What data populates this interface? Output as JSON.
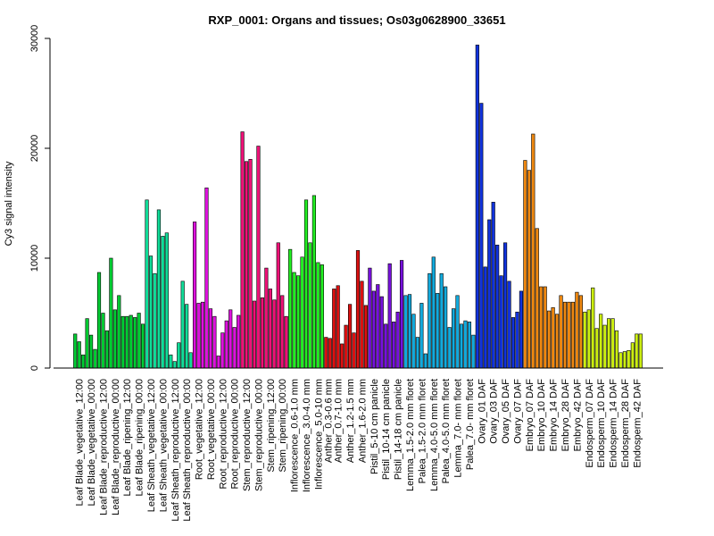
{
  "chart_data": {
    "type": "bar",
    "title": "RXP_0001: Organs and tissues; Os03g0628900_33651",
    "xlabel": "",
    "ylabel": "Cy3 signal intensity",
    "ylim": [
      0,
      30000
    ],
    "yticks": [
      0,
      10000,
      20000,
      30000
    ],
    "grid": false,
    "legend": "none",
    "groups": [
      {
        "label": "Leaf Blade_vegetative_12:00",
        "color": "#00cc33",
        "values": [
          3100,
          2400,
          1200
        ]
      },
      {
        "label": "Leaf Blade_vegetative_00:00",
        "color": "#00cc33",
        "values": [
          4500,
          3000,
          1700
        ]
      },
      {
        "label": "Leaf Blade_reproductive_12:00",
        "color": "#00cc33",
        "values": [
          8700,
          5000,
          3400
        ]
      },
      {
        "label": "Leaf Blade_reproductive_00:00",
        "color": "#00cc33",
        "values": [
          10000,
          5300,
          6600
        ]
      },
      {
        "label": "Leaf Blade_ripening_12:00",
        "color": "#00cc33",
        "values": [
          4700,
          4700,
          4800
        ]
      },
      {
        "label": "Leaf Blade_ripening_00:00",
        "color": "#00cc33",
        "values": [
          4600,
          5000,
          4000
        ]
      },
      {
        "label": "Leaf Sheath_vegetative_12:00",
        "color": "#11dd99",
        "values": [
          15300,
          10200,
          8600
        ]
      },
      {
        "label": "Leaf Sheath_vegetative_00:00",
        "color": "#11dd99",
        "values": [
          14400,
          12000,
          12300
        ]
      },
      {
        "label": "Leaf Sheath_reproductive_12:00",
        "color": "#11dd99",
        "values": [
          1200,
          600,
          2300
        ]
      },
      {
        "label": "Leaf Sheath_reproductive_00:00",
        "color": "#11dd99",
        "values": [
          7900,
          5800,
          1400
        ]
      },
      {
        "label": "Root_vegetative_12:00",
        "color": "#dd11dd",
        "values": [
          13300,
          5900,
          6000
        ]
      },
      {
        "label": "Root_vegetative_00:00",
        "color": "#dd11dd",
        "values": [
          16400,
          5400,
          4700
        ]
      },
      {
        "label": "Root_reproductive_12:00",
        "color": "#dd11dd",
        "values": [
          1100,
          3200,
          4300
        ]
      },
      {
        "label": "Root_reproductive_00:00",
        "color": "#dd11dd",
        "values": [
          5300,
          3700,
          4800
        ]
      },
      {
        "label": "Stem_reproductive_12:00",
        "color": "#ee1177",
        "values": [
          21500,
          18800,
          19000
        ]
      },
      {
        "label": "Stem_reproductive_00:00",
        "color": "#ee1177",
        "values": [
          6100,
          20200,
          6400
        ]
      },
      {
        "label": "Stem_ripening_12:00",
        "color": "#ee1177",
        "values": [
          9100,
          7200,
          6200
        ]
      },
      {
        "label": "Stem_ripening_00:00",
        "color": "#ee1177",
        "values": [
          11400,
          6600,
          4700
        ]
      },
      {
        "label": "Inflorescence_0.6-1.0 mm",
        "color": "#22ee22",
        "values": [
          10800,
          8700,
          8400
        ]
      },
      {
        "label": "Inflorescence_3.0-4.0 mm",
        "color": "#22ee22",
        "values": [
          10100,
          15300,
          11400
        ]
      },
      {
        "label": "Inflorescence_5.0-10 mm",
        "color": "#22ee22",
        "values": [
          15700,
          9600,
          9400
        ]
      },
      {
        "label": "Anther_0.3-0.6 mm",
        "color": "#dd1111",
        "values": [
          2800,
          2700
        ]
      },
      {
        "label": "Anther_0.7-1.0 mm",
        "color": "#dd1111",
        "values": [
          7200,
          7500,
          2200
        ]
      },
      {
        "label": "Anther_1.2-1.5 mm",
        "color": "#dd1111",
        "values": [
          3900,
          5800,
          3200
        ]
      },
      {
        "label": "Anther_1.6-2.0 mm",
        "color": "#dd1111",
        "values": [
          10700,
          7900,
          5700
        ]
      },
      {
        "label": "Pistil_5-10 cm panicle",
        "color": "#7711dd",
        "values": [
          9100,
          7000,
          7600
        ]
      },
      {
        "label": "Pistil_10-14 cm panicle",
        "color": "#7711dd",
        "values": [
          6500,
          4000,
          9500
        ]
      },
      {
        "label": "Pistil_14-18 cm panicle",
        "color": "#7711dd",
        "values": [
          4200,
          5100,
          9800
        ]
      },
      {
        "label": "Lemma_1.5-2.0 mm floret",
        "color": "#11aadd",
        "values": [
          6600,
          6700,
          4900
        ]
      },
      {
        "label": "Palea_1.5-2.0 mm floret",
        "color": "#11aadd",
        "values": [
          2800,
          5900,
          1300
        ]
      },
      {
        "label": "Lemma_4.0-5.0 mm floret",
        "color": "#11aadd",
        "values": [
          8600,
          10100,
          6800
        ]
      },
      {
        "label": "Palea_4.0-5.0 mm floret",
        "color": "#11aadd",
        "values": [
          8600,
          7400,
          3700
        ]
      },
      {
        "label": "Lemma_7.0- mm floret",
        "color": "#11aadd",
        "values": [
          5400,
          6600,
          4000
        ]
      },
      {
        "label": "Palea_7.0- mm floret",
        "color": "#11aadd",
        "values": [
          4300,
          4200,
          3000
        ]
      },
      {
        "label": "Ovary_01 DAF",
        "color": "#1133dd",
        "values": [
          29400,
          24100,
          9200
        ]
      },
      {
        "label": "Ovary_03 DAF",
        "color": "#1133dd",
        "values": [
          13500,
          15100,
          11200
        ]
      },
      {
        "label": "Ovary_05 DAF",
        "color": "#1133dd",
        "values": [
          8400,
          11400,
          7900
        ]
      },
      {
        "label": "Ovary_07 DAF",
        "color": "#1133dd",
        "values": [
          4600,
          5100,
          7000
        ]
      },
      {
        "label": "Embryo_07 DAF",
        "color": "#ee8811",
        "values": [
          18900,
          18000,
          21300
        ]
      },
      {
        "label": "Embryo_10 DAF",
        "color": "#ee8811",
        "values": [
          12700,
          7400,
          7400
        ]
      },
      {
        "label": "Embryo_14 DAF",
        "color": "#ee8811",
        "values": [
          5200,
          5500,
          4900
        ]
      },
      {
        "label": "Embryo_28 DAF",
        "color": "#ee8811",
        "values": [
          6600,
          6000,
          6000
        ]
      },
      {
        "label": "Embryo_42 DAF",
        "color": "#ee8811",
        "values": [
          6000,
          6900,
          6600
        ]
      },
      {
        "label": "Endosperm_07 DAF",
        "color": "#ccee11",
        "values": [
          5100,
          5300,
          7300
        ]
      },
      {
        "label": "Endosperm_10 DAF",
        "color": "#ccee11",
        "values": [
          3600,
          4900,
          3900
        ]
      },
      {
        "label": "Endosperm_14 DAF",
        "color": "#ccee11",
        "values": [
          4500,
          4500,
          3400
        ]
      },
      {
        "label": "Endosperm_28 DAF",
        "color": "#ccee11",
        "values": [
          1400,
          1500,
          1600
        ]
      },
      {
        "label": "Endosperm_42 DAF",
        "color": "#ccee11",
        "values": [
          2300,
          3100,
          3100
        ]
      }
    ]
  }
}
